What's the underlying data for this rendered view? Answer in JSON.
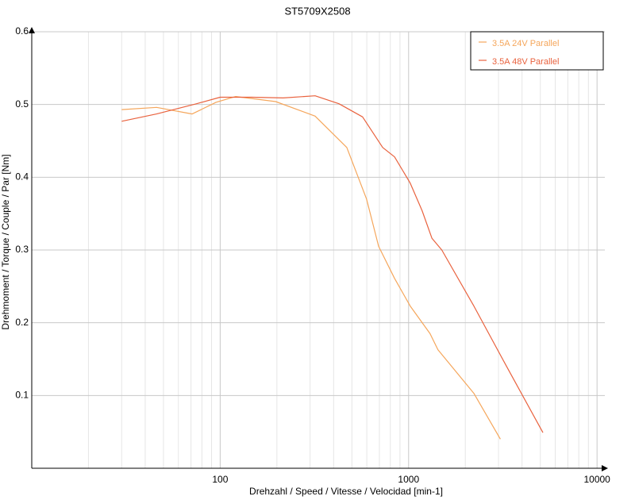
{
  "chart_data": {
    "type": "line",
    "title": "ST5709X2508",
    "x_label": "Drehzahl / Speed / Vitesse / Velocidad [min-1]",
    "y_label": "Drehmoment / Torque / Couple / Par [Nm]",
    "x_scale": "log",
    "grid": true,
    "legend_position": "upper right",
    "xlim": [
      10,
      11000
    ],
    "xticks": [
      100,
      1000,
      10000
    ],
    "xminorticks": [
      20,
      30,
      40,
      50,
      60,
      70,
      80,
      90,
      200,
      300,
      400,
      500,
      600,
      700,
      800,
      900,
      2000,
      3000,
      4000,
      5000,
      6000,
      7000,
      8000,
      9000
    ],
    "ylim": [
      0,
      0.6
    ],
    "yticks": [
      0.1,
      0.2,
      0.3,
      0.4,
      0.5,
      0.6
    ],
    "series": [
      {
        "name": "3.5A  24V  Parallel",
        "color": "#f5a65b",
        "x": [
          30,
          46,
          71,
          95,
          121,
          197,
          319,
          470,
          598,
          693,
          842,
          1020,
          1300,
          1430,
          2220,
          3070
        ],
        "values": [
          0.493,
          0.496,
          0.487,
          0.503,
          0.511,
          0.504,
          0.484,
          0.441,
          0.37,
          0.305,
          0.261,
          0.223,
          0.185,
          0.163,
          0.103,
          0.04
        ]
      },
      {
        "name": "3.5A  48V  Parallel",
        "color": "#e9623e",
        "x": [
          30,
          46,
          75,
          100,
          147,
          216,
          319,
          427,
          570,
          728,
          842,
          1020,
          1180,
          1330,
          1500,
          2220,
          3280,
          5160
        ],
        "values": [
          0.477,
          0.487,
          0.501,
          0.51,
          0.51,
          0.509,
          0.512,
          0.501,
          0.483,
          0.441,
          0.428,
          0.392,
          0.354,
          0.316,
          0.3,
          0.223,
          0.142,
          0.049
        ]
      }
    ]
  }
}
